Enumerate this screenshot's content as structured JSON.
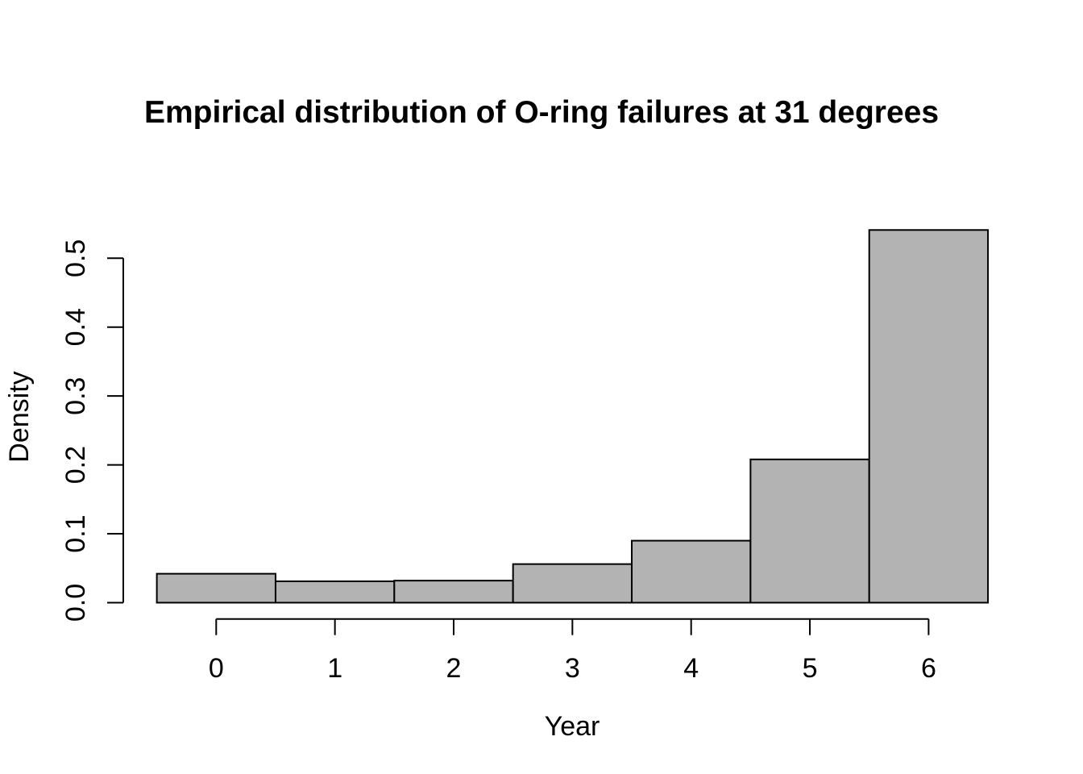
{
  "figure": {
    "background": "#ffffff"
  },
  "chart_data": {
    "type": "bar",
    "variant": "histogram",
    "title": "Empirical distribution of O-ring failures at 31 degrees",
    "xlabel": "Year",
    "ylabel": "Density",
    "categories": [
      0,
      1,
      2,
      3,
      4,
      5,
      6
    ],
    "values": [
      0.042,
      0.031,
      0.032,
      0.056,
      0.09,
      0.208,
      0.541
    ],
    "bin_edges": [
      -0.5,
      0.5,
      1.5,
      2.5,
      3.5,
      4.5,
      5.5,
      6.5
    ],
    "x_ticks": [
      "0",
      "1",
      "2",
      "3",
      "4",
      "5",
      "6"
    ],
    "y_ticks": [
      "0.0",
      "0.1",
      "0.2",
      "0.3",
      "0.4",
      "0.5"
    ],
    "xlim": [
      -0.5,
      6.5
    ],
    "y_axis_max": 0.5,
    "grid": false,
    "legend": null,
    "bar_fill": "#b3b3b3",
    "bar_stroke": "#000000",
    "axis_color": "#000000",
    "text_color": "#000000"
  }
}
